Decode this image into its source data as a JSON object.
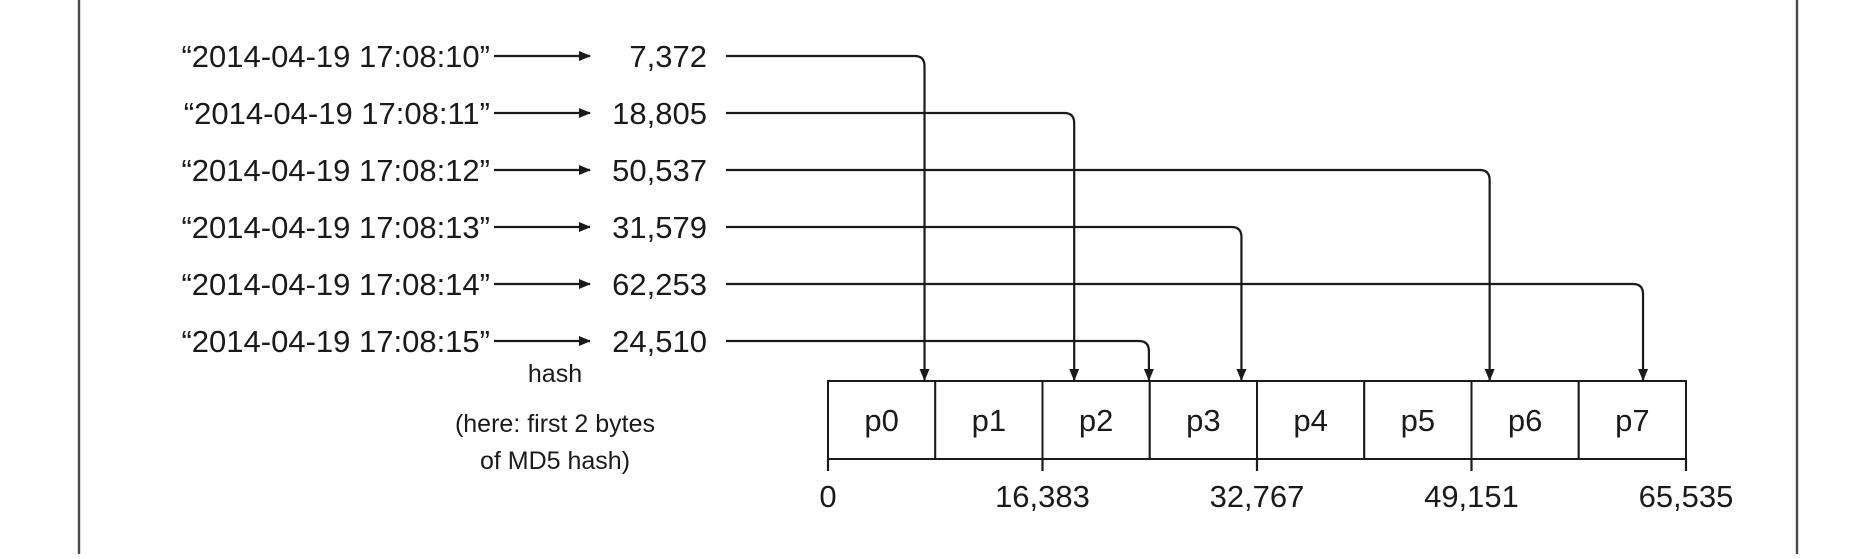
{
  "diagram": {
    "keys": [
      {
        "key": "“2014-04-19 17:08:10”",
        "hash": 7372,
        "hash_label": "7,372"
      },
      {
        "key": "“2014-04-19 17:08:11”",
        "hash": 18805,
        "hash_label": "18,805"
      },
      {
        "key": "“2014-04-19 17:08:12”",
        "hash": 50537,
        "hash_label": "50,537"
      },
      {
        "key": "“2014-04-19 17:08:13”",
        "hash": 31579,
        "hash_label": "31,579"
      },
      {
        "key": "“2014-04-19 17:08:14”",
        "hash": 62253,
        "hash_label": "62,253"
      },
      {
        "key": "“2014-04-19 17:08:15”",
        "hash": 24510,
        "hash_label": "24,510"
      }
    ],
    "hash_label": "hash",
    "hash_caption_line1": "(here: first 2 bytes",
    "hash_caption_line2": "of MD5 hash)",
    "partitions": [
      "p0",
      "p1",
      "p2",
      "p3",
      "p4",
      "p5",
      "p6",
      "p7"
    ],
    "axis_range": [
      0,
      65535
    ],
    "axis_ticks": [
      {
        "value": 0,
        "label": "0"
      },
      {
        "value": 16383,
        "label": "16,383"
      },
      {
        "value": 32767,
        "label": "32,767"
      },
      {
        "value": 49151,
        "label": "49,151"
      },
      {
        "value": 65535,
        "label": "65,535"
      }
    ]
  }
}
